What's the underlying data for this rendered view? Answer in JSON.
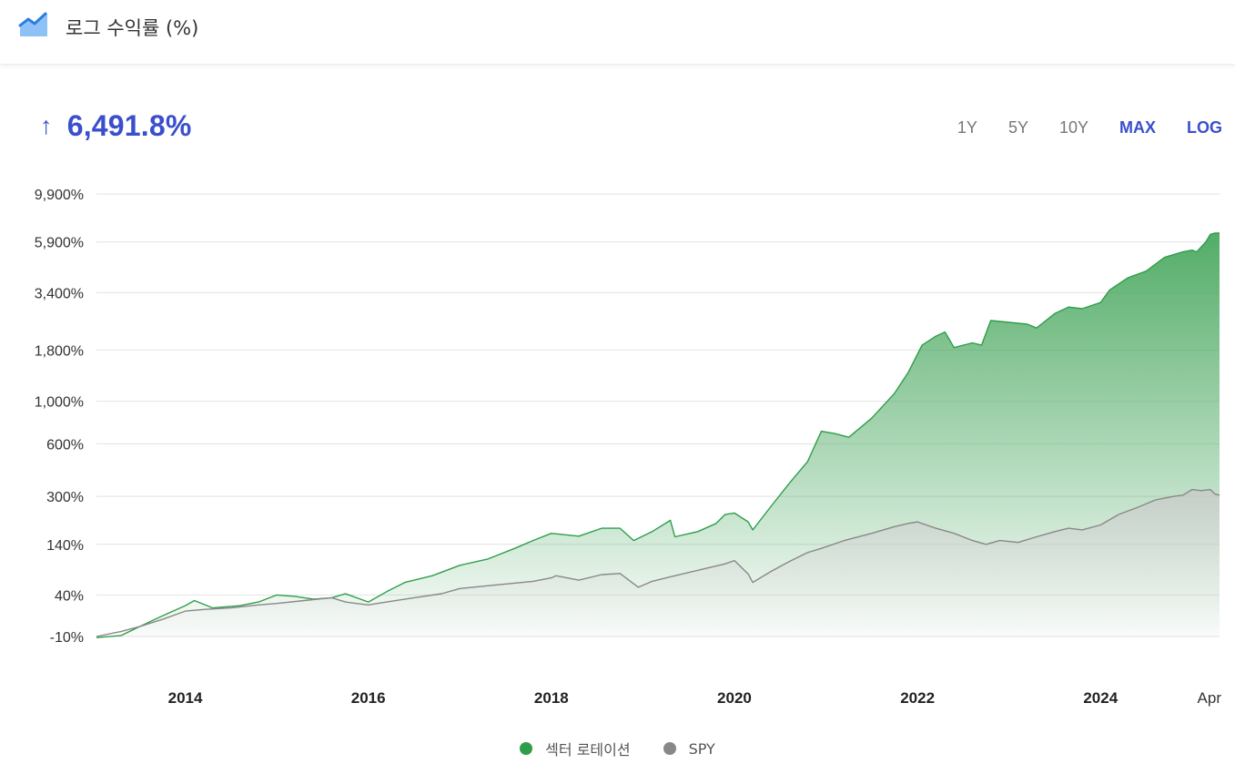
{
  "header": {
    "title": "로그 수익률 (%)",
    "icon": "area-chart-icon"
  },
  "headline": {
    "arrow": "↑",
    "value": "6,491.8%"
  },
  "ranges": [
    {
      "label": "1Y",
      "active": false
    },
    {
      "label": "5Y",
      "active": false
    },
    {
      "label": "10Y",
      "active": false
    },
    {
      "label": "MAX",
      "active": true
    },
    {
      "label": "LOG",
      "active": true
    }
  ],
  "legend": [
    {
      "label": "섹터 로테이션",
      "color": "#2e9e4a"
    },
    {
      "label": "SPY",
      "color": "#888888"
    }
  ],
  "chart_data": {
    "type": "area",
    "yscale": "log(1+x/100)",
    "y_unit": "%",
    "yticks": [
      -10,
      40,
      140,
      300,
      600,
      1000,
      1800,
      3400,
      5900,
      9900
    ],
    "ytick_labels": [
      "-10%",
      "40%",
      "140%",
      "300%",
      "600%",
      "1,000%",
      "1,800%",
      "3,400%",
      "5,900%",
      "9,900%"
    ],
    "xlim": [
      2013.03,
      2025.3
    ],
    "xticks": [
      2014,
      2016,
      2018,
      2020,
      2022,
      2024,
      2025.3
    ],
    "xtick_labels": [
      "2014",
      "2016",
      "2018",
      "2020",
      "2022",
      "2024",
      "Apr"
    ],
    "grid": true,
    "legend_position": "bottom",
    "series": [
      {
        "name": "섹터 로테이션",
        "color": "#2e9e4a",
        "fill": true,
        "points": [
          [
            2013.03,
            -11
          ],
          [
            2013.3,
            -9
          ],
          [
            2013.5,
            0
          ],
          [
            2013.75,
            12
          ],
          [
            2014.0,
            25
          ],
          [
            2014.1,
            32
          ],
          [
            2014.3,
            22
          ],
          [
            2014.6,
            25
          ],
          [
            2014.8,
            30
          ],
          [
            2015.0,
            40
          ],
          [
            2015.2,
            38
          ],
          [
            2015.4,
            34
          ],
          [
            2015.6,
            36
          ],
          [
            2015.75,
            42
          ],
          [
            2016.0,
            30
          ],
          [
            2016.2,
            45
          ],
          [
            2016.4,
            60
          ],
          [
            2016.7,
            72
          ],
          [
            2017.0,
            92
          ],
          [
            2017.3,
            105
          ],
          [
            2017.6,
            130
          ],
          [
            2017.8,
            150
          ],
          [
            2018.0,
            170
          ],
          [
            2018.3,
            162
          ],
          [
            2018.55,
            185
          ],
          [
            2018.75,
            185
          ],
          [
            2018.9,
            150
          ],
          [
            2019.1,
            175
          ],
          [
            2019.3,
            210
          ],
          [
            2019.35,
            160
          ],
          [
            2019.6,
            175
          ],
          [
            2019.8,
            200
          ],
          [
            2019.9,
            230
          ],
          [
            2020.0,
            235
          ],
          [
            2020.15,
            205
          ],
          [
            2020.2,
            180
          ],
          [
            2020.4,
            260
          ],
          [
            2020.6,
            360
          ],
          [
            2020.8,
            480
          ],
          [
            2020.95,
            700
          ],
          [
            2021.1,
            680
          ],
          [
            2021.25,
            650
          ],
          [
            2021.5,
            820
          ],
          [
            2021.75,
            1100
          ],
          [
            2021.9,
            1400
          ],
          [
            2022.05,
            1900
          ],
          [
            2022.2,
            2100
          ],
          [
            2022.3,
            2200
          ],
          [
            2022.4,
            1850
          ],
          [
            2022.6,
            1950
          ],
          [
            2022.7,
            1900
          ],
          [
            2022.8,
            2500
          ],
          [
            2023.0,
            2450
          ],
          [
            2023.2,
            2400
          ],
          [
            2023.3,
            2300
          ],
          [
            2023.5,
            2700
          ],
          [
            2023.65,
            2900
          ],
          [
            2023.8,
            2850
          ],
          [
            2024.0,
            3050
          ],
          [
            2024.1,
            3500
          ],
          [
            2024.3,
            4000
          ],
          [
            2024.5,
            4300
          ],
          [
            2024.7,
            5000
          ],
          [
            2024.9,
            5300
          ],
          [
            2025.0,
            5400
          ],
          [
            2025.05,
            5300
          ],
          [
            2025.15,
            5900
          ],
          [
            2025.2,
            6400
          ],
          [
            2025.25,
            6500
          ],
          [
            2025.3,
            6492
          ]
        ]
      },
      {
        "name": "SPY",
        "color": "#888888",
        "fill": true,
        "points": [
          [
            2013.03,
            -10
          ],
          [
            2013.3,
            -5
          ],
          [
            2013.5,
            0
          ],
          [
            2013.75,
            8
          ],
          [
            2014.0,
            18
          ],
          [
            2014.2,
            20
          ],
          [
            2014.5,
            22
          ],
          [
            2014.8,
            26
          ],
          [
            2015.0,
            28
          ],
          [
            2015.3,
            32
          ],
          [
            2015.6,
            36
          ],
          [
            2015.75,
            30
          ],
          [
            2016.0,
            26
          ],
          [
            2016.2,
            30
          ],
          [
            2016.5,
            36
          ],
          [
            2016.8,
            42
          ],
          [
            2017.0,
            50
          ],
          [
            2017.4,
            56
          ],
          [
            2017.8,
            62
          ],
          [
            2018.0,
            68
          ],
          [
            2018.05,
            72
          ],
          [
            2018.3,
            64
          ],
          [
            2018.55,
            74
          ],
          [
            2018.75,
            76
          ],
          [
            2018.95,
            52
          ],
          [
            2019.1,
            62
          ],
          [
            2019.3,
            70
          ],
          [
            2019.6,
            82
          ],
          [
            2019.9,
            95
          ],
          [
            2020.0,
            102
          ],
          [
            2020.15,
            75
          ],
          [
            2020.2,
            60
          ],
          [
            2020.4,
            80
          ],
          [
            2020.6,
            100
          ],
          [
            2020.8,
            120
          ],
          [
            2020.95,
            130
          ],
          [
            2021.2,
            150
          ],
          [
            2021.5,
            170
          ],
          [
            2021.75,
            190
          ],
          [
            2021.9,
            200
          ],
          [
            2022.0,
            205
          ],
          [
            2022.2,
            185
          ],
          [
            2022.4,
            170
          ],
          [
            2022.6,
            150
          ],
          [
            2022.75,
            140
          ],
          [
            2022.9,
            150
          ],
          [
            2023.1,
            145
          ],
          [
            2023.3,
            160
          ],
          [
            2023.5,
            175
          ],
          [
            2023.65,
            185
          ],
          [
            2023.8,
            180
          ],
          [
            2024.0,
            195
          ],
          [
            2024.2,
            230
          ],
          [
            2024.4,
            255
          ],
          [
            2024.6,
            285
          ],
          [
            2024.8,
            300
          ],
          [
            2024.9,
            305
          ],
          [
            2025.0,
            330
          ],
          [
            2025.1,
            325
          ],
          [
            2025.2,
            330
          ],
          [
            2025.25,
            310
          ],
          [
            2025.3,
            305
          ]
        ]
      }
    ]
  }
}
